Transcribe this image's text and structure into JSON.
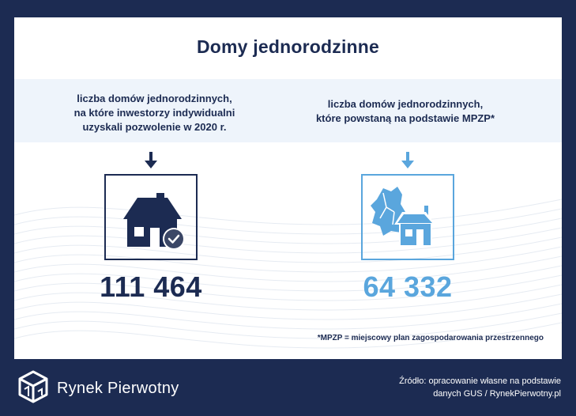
{
  "title": "Domy jednorodzinne",
  "left": {
    "description_lines": [
      "liczba domów jednorodzinnych,",
      "na które inwestorzy indywidualni",
      "uzyskali pozwolenie w 2020 r."
    ],
    "value": "111 464",
    "icon": "house-check-icon",
    "color": "#1c2b52"
  },
  "right": {
    "description_lines": [
      "liczba domów jednorodzinnych,",
      "które powstaną na podstawie MPZP*"
    ],
    "value": "64 332",
    "icon": "house-map-icon",
    "color": "#5aa6dd"
  },
  "footnote": "*MPZP = miejscowy plan zagospodarowania przestrzennego",
  "footer": {
    "brand": "Rynek Pierwotny",
    "source_lines": [
      "Źródło: opracowanie własne na podstawie",
      "danych GUS / RynekPierwotny.pl"
    ]
  },
  "colors": {
    "background": "#1c2b52",
    "accent": "#5aa6dd",
    "band": "#eef4fb"
  }
}
